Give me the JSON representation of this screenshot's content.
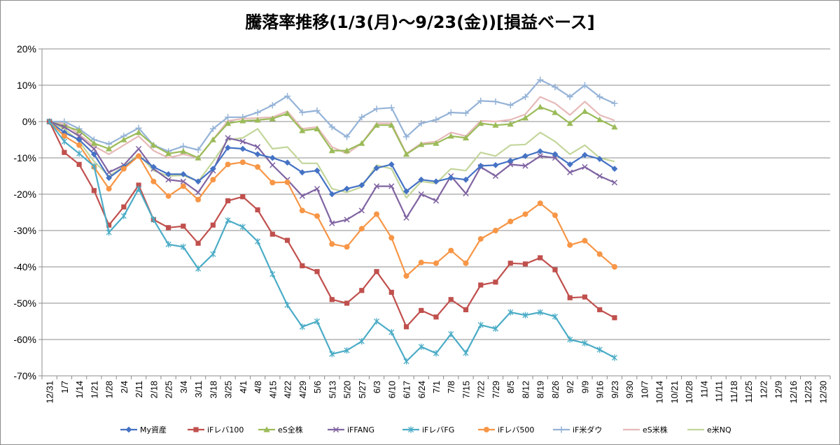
{
  "chart_data": {
    "type": "line",
    "title": "騰落率推移(1/3(月)～9/23(金))[損益ベース]",
    "xlabel": "",
    "ylabel": "",
    "ylim": [
      -0.7,
      0.2
    ],
    "y_ticks": [
      0.2,
      0.1,
      0,
      -0.1,
      -0.2,
      -0.3,
      -0.4,
      -0.5,
      -0.6,
      -0.7
    ],
    "y_tick_labels": [
      "20%",
      "10%",
      "0%",
      "-10%",
      "-20%",
      "-30%",
      "-40%",
      "-50%",
      "-60%",
      "-70%"
    ],
    "x_tick_labels": [
      "12/31",
      "1/7",
      "1/14",
      "1/21",
      "1/28",
      "2/4",
      "2/11",
      "2/18",
      "2/25",
      "3/4",
      "3/11",
      "3/18",
      "3/25",
      "4/1",
      "4/8",
      "4/15",
      "4/22",
      "4/29",
      "5/6",
      "5/13",
      "5/20",
      "5/27",
      "6/3",
      "6/10",
      "6/17",
      "6/24",
      "7/1",
      "7/8",
      "7/15",
      "7/22",
      "7/29",
      "8/5",
      "8/12",
      "8/19",
      "8/26",
      "9/2",
      "9/9",
      "9/16",
      "9/23",
      "9/30",
      "10/7",
      "10/14",
      "10/21",
      "10/28",
      "11/4",
      "11/11",
      "11/18",
      "11/25",
      "12/2",
      "12/9",
      "12/16",
      "12/23",
      "12/30"
    ],
    "grid": "horizontal",
    "legend_position": "bottom",
    "series": [
      {
        "name": "My資産",
        "color": "#4472C4",
        "marker": "diamond",
        "values": [
          0,
          -0.03,
          -0.05,
          -0.09,
          -0.155,
          -0.125,
          -0.095,
          -0.125,
          -0.145,
          -0.145,
          -0.165,
          -0.13,
          -0.072,
          -0.075,
          -0.09,
          -0.1,
          -0.113,
          -0.14,
          -0.135,
          -0.2,
          -0.185,
          -0.175,
          -0.128,
          -0.118,
          -0.192,
          -0.16,
          -0.165,
          -0.155,
          -0.16,
          -0.122,
          -0.12,
          -0.108,
          -0.095,
          -0.082,
          -0.09,
          -0.118,
          -0.092,
          -0.103,
          -0.13
        ]
      },
      {
        "name": "iFレバ100",
        "color": "#C0504D",
        "marker": "square",
        "values": [
          0,
          -0.085,
          -0.118,
          -0.19,
          -0.285,
          -0.235,
          -0.175,
          -0.27,
          -0.292,
          -0.288,
          -0.335,
          -0.285,
          -0.218,
          -0.207,
          -0.243,
          -0.31,
          -0.327,
          -0.397,
          -0.413,
          -0.49,
          -0.5,
          -0.465,
          -0.413,
          -0.47,
          -0.565,
          -0.52,
          -0.538,
          -0.49,
          -0.518,
          -0.45,
          -0.442,
          -0.39,
          -0.392,
          -0.375,
          -0.408,
          -0.485,
          -0.483,
          -0.518,
          -0.54
        ]
      },
      {
        "name": "eS全株",
        "color": "#9BBB59",
        "marker": "triangle",
        "values": [
          0,
          -0.012,
          -0.025,
          -0.06,
          -0.075,
          -0.05,
          -0.03,
          -0.065,
          -0.088,
          -0.082,
          -0.1,
          -0.05,
          -0.005,
          0.002,
          0.004,
          0.008,
          0.022,
          -0.025,
          -0.02,
          -0.08,
          -0.08,
          -0.06,
          -0.01,
          -0.01,
          -0.09,
          -0.063,
          -0.06,
          -0.04,
          -0.045,
          -0.005,
          -0.01,
          -0.007,
          0.01,
          0.04,
          0.025,
          -0.005,
          0.028,
          0.005,
          -0.015
        ]
      },
      {
        "name": "iFFANG",
        "color": "#8064A2",
        "marker": "x",
        "values": [
          0,
          -0.015,
          -0.04,
          -0.075,
          -0.14,
          -0.12,
          -0.075,
          -0.13,
          -0.16,
          -0.165,
          -0.195,
          -0.135,
          -0.045,
          -0.055,
          -0.07,
          -0.12,
          -0.16,
          -0.205,
          -0.185,
          -0.28,
          -0.27,
          -0.245,
          -0.178,
          -0.178,
          -0.265,
          -0.2,
          -0.218,
          -0.15,
          -0.198,
          -0.125,
          -0.15,
          -0.118,
          -0.122,
          -0.095,
          -0.1,
          -0.14,
          -0.125,
          -0.15,
          -0.168
        ]
      },
      {
        "name": "iFレバFG",
        "color": "#4BACC6",
        "marker": "star",
        "values": [
          0,
          -0.055,
          -0.088,
          -0.123,
          -0.305,
          -0.26,
          -0.185,
          -0.27,
          -0.338,
          -0.345,
          -0.405,
          -0.365,
          -0.272,
          -0.29,
          -0.33,
          -0.42,
          -0.505,
          -0.565,
          -0.55,
          -0.64,
          -0.63,
          -0.605,
          -0.55,
          -0.58,
          -0.66,
          -0.62,
          -0.638,
          -0.585,
          -0.637,
          -0.56,
          -0.57,
          -0.525,
          -0.533,
          -0.525,
          -0.537,
          -0.6,
          -0.61,
          -0.628,
          -0.65
        ]
      },
      {
        "name": "iFレバ500",
        "color": "#F79646",
        "marker": "circle",
        "values": [
          0,
          -0.04,
          -0.065,
          -0.125,
          -0.185,
          -0.13,
          -0.095,
          -0.165,
          -0.205,
          -0.178,
          -0.215,
          -0.16,
          -0.118,
          -0.112,
          -0.125,
          -0.168,
          -0.167,
          -0.245,
          -0.26,
          -0.337,
          -0.345,
          -0.295,
          -0.255,
          -0.32,
          -0.425,
          -0.388,
          -0.39,
          -0.355,
          -0.39,
          -0.323,
          -0.3,
          -0.275,
          -0.255,
          -0.225,
          -0.258,
          -0.34,
          -0.328,
          -0.365,
          -0.4
        ]
      },
      {
        "name": "iF米ダウ",
        "color": "#95B3D7",
        "marker": "plus",
        "values": [
          0,
          0,
          -0.02,
          -0.05,
          -0.062,
          -0.04,
          -0.018,
          -0.065,
          -0.082,
          -0.068,
          -0.078,
          -0.02,
          0.012,
          0.012,
          0.025,
          0.045,
          0.07,
          0.025,
          0.03,
          -0.015,
          -0.042,
          0.012,
          0.035,
          0.038,
          -0.042,
          -0.005,
          0.005,
          0.025,
          0.023,
          0.057,
          0.055,
          0.045,
          0.068,
          0.115,
          0.095,
          0.068,
          0.1,
          0.068,
          0.05
        ]
      },
      {
        "name": "eS米株",
        "color": "#E6B9B8",
        "marker": "none",
        "values": [
          0,
          -0.005,
          -0.035,
          -0.068,
          -0.09,
          -0.065,
          -0.04,
          -0.08,
          -0.1,
          -0.09,
          -0.1,
          -0.05,
          0.002,
          0.008,
          0.01,
          0.012,
          0.028,
          -0.02,
          -0.015,
          -0.07,
          -0.088,
          -0.06,
          -0.005,
          -0.005,
          -0.088,
          -0.06,
          -0.055,
          -0.03,
          -0.04,
          0.002,
          0.0,
          0.005,
          0.02,
          0.068,
          0.05,
          0.018,
          0.055,
          0.018,
          0.003
        ]
      },
      {
        "name": "e米NQ",
        "color": "#C3D69B",
        "marker": "none",
        "values": [
          0,
          -0.02,
          -0.055,
          -0.11,
          -0.15,
          -0.125,
          -0.09,
          -0.135,
          -0.15,
          -0.148,
          -0.165,
          -0.11,
          -0.05,
          -0.045,
          -0.02,
          -0.075,
          -0.07,
          -0.115,
          -0.115,
          -0.185,
          -0.195,
          -0.18,
          -0.12,
          -0.13,
          -0.21,
          -0.165,
          -0.17,
          -0.13,
          -0.135,
          -0.085,
          -0.095,
          -0.065,
          -0.063,
          -0.03,
          -0.055,
          -0.09,
          -0.065,
          -0.1,
          -0.11
        ]
      }
    ]
  }
}
